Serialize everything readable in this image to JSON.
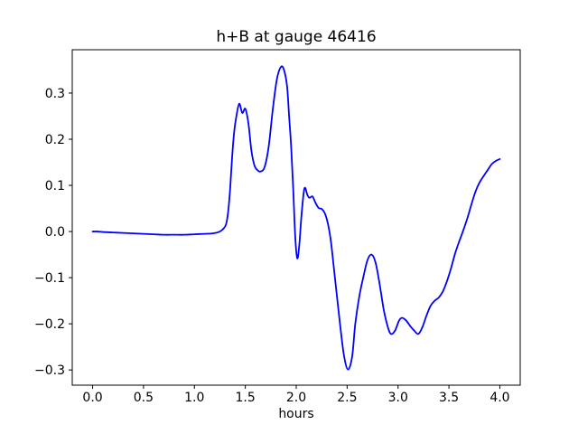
{
  "figure": {
    "title": "h+B at gauge 46416",
    "xlabel": "hours",
    "background_color": "#ffffff",
    "line_color": "#0000ff",
    "spine_color": "#000000",
    "text_color": "#000000"
  },
  "chart_data": {
    "type": "line",
    "title": "h+B at gauge 46416",
    "xlabel": "hours",
    "ylabel": "",
    "grid": false,
    "legend": null,
    "xlim": [
      -0.2,
      4.2
    ],
    "ylim": [
      -0.333,
      0.394
    ],
    "xticks": [
      0.0,
      0.5,
      1.0,
      1.5,
      2.0,
      2.5,
      3.0,
      3.5,
      4.0
    ],
    "xtick_labels": [
      "0.0",
      "0.5",
      "1.0",
      "1.5",
      "2.0",
      "2.5",
      "3.0",
      "3.5",
      "4.0"
    ],
    "yticks": [
      0.3,
      0.2,
      0.1,
      0.0,
      -0.1,
      -0.2,
      -0.3
    ],
    "ytick_labels": [
      "0.3",
      "0.2",
      "0.1",
      "0.0",
      "−0.1",
      "−0.2",
      "−0.3"
    ],
    "series": [
      {
        "name": "h+B",
        "color": "#0000ff",
        "line_width": 1.8,
        "points": [
          [
            0.0,
            0.0
          ],
          [
            0.05,
            0.0
          ],
          [
            0.1,
            -0.001
          ],
          [
            0.2,
            -0.002
          ],
          [
            0.3,
            -0.003
          ],
          [
            0.4,
            -0.004
          ],
          [
            0.5,
            -0.005
          ],
          [
            0.6,
            -0.006
          ],
          [
            0.7,
            -0.007
          ],
          [
            0.8,
            -0.007
          ],
          [
            0.9,
            -0.007
          ],
          [
            1.0,
            -0.006
          ],
          [
            1.1,
            -0.005
          ],
          [
            1.18,
            -0.004
          ],
          [
            1.24,
            -0.001
          ],
          [
            1.28,
            0.005
          ],
          [
            1.31,
            0.015
          ],
          [
            1.33,
            0.04
          ],
          [
            1.35,
            0.09
          ],
          [
            1.37,
            0.16
          ],
          [
            1.39,
            0.215
          ],
          [
            1.41,
            0.247
          ],
          [
            1.44,
            0.277
          ],
          [
            1.47,
            0.257
          ],
          [
            1.5,
            0.266
          ],
          [
            1.53,
            0.235
          ],
          [
            1.56,
            0.175
          ],
          [
            1.59,
            0.143
          ],
          [
            1.62,
            0.133
          ],
          [
            1.65,
            0.13
          ],
          [
            1.69,
            0.14
          ],
          [
            1.73,
            0.185
          ],
          [
            1.77,
            0.265
          ],
          [
            1.81,
            0.33
          ],
          [
            1.85,
            0.357
          ],
          [
            1.88,
            0.35
          ],
          [
            1.91,
            0.315
          ],
          [
            1.93,
            0.25
          ],
          [
            1.95,
            0.185
          ],
          [
            1.97,
            0.095
          ],
          [
            1.99,
            -0.01
          ],
          [
            2.01,
            -0.058
          ],
          [
            2.03,
            -0.03
          ],
          [
            2.05,
            0.03
          ],
          [
            2.08,
            0.093
          ],
          [
            2.11,
            0.079
          ],
          [
            2.13,
            0.073
          ],
          [
            2.16,
            0.076
          ],
          [
            2.19,
            0.062
          ],
          [
            2.22,
            0.051
          ],
          [
            2.25,
            0.049
          ],
          [
            2.28,
            0.04
          ],
          [
            2.31,
            0.018
          ],
          [
            2.34,
            -0.02
          ],
          [
            2.38,
            -0.1
          ],
          [
            2.43,
            -0.2
          ],
          [
            2.47,
            -0.27
          ],
          [
            2.51,
            -0.299
          ],
          [
            2.55,
            -0.27
          ],
          [
            2.58,
            -0.2
          ],
          [
            2.62,
            -0.14
          ],
          [
            2.66,
            -0.098
          ],
          [
            2.7,
            -0.062
          ],
          [
            2.74,
            -0.05
          ],
          [
            2.78,
            -0.068
          ],
          [
            2.82,
            -0.115
          ],
          [
            2.86,
            -0.17
          ],
          [
            2.9,
            -0.207
          ],
          [
            2.93,
            -0.222
          ],
          [
            2.97,
            -0.215
          ],
          [
            3.01,
            -0.193
          ],
          [
            3.04,
            -0.187
          ],
          [
            3.08,
            -0.193
          ],
          [
            3.12,
            -0.205
          ],
          [
            3.16,
            -0.215
          ],
          [
            3.2,
            -0.222
          ],
          [
            3.24,
            -0.207
          ],
          [
            3.28,
            -0.182
          ],
          [
            3.32,
            -0.161
          ],
          [
            3.36,
            -0.15
          ],
          [
            3.4,
            -0.143
          ],
          [
            3.44,
            -0.13
          ],
          [
            3.48,
            -0.108
          ],
          [
            3.52,
            -0.08
          ],
          [
            3.56,
            -0.048
          ],
          [
            3.6,
            -0.022
          ],
          [
            3.64,
            0.002
          ],
          [
            3.68,
            0.028
          ],
          [
            3.72,
            0.058
          ],
          [
            3.76,
            0.086
          ],
          [
            3.8,
            0.106
          ],
          [
            3.84,
            0.12
          ],
          [
            3.88,
            0.133
          ],
          [
            3.92,
            0.146
          ],
          [
            3.96,
            0.153
          ],
          [
            4.0,
            0.157
          ]
        ]
      }
    ]
  }
}
